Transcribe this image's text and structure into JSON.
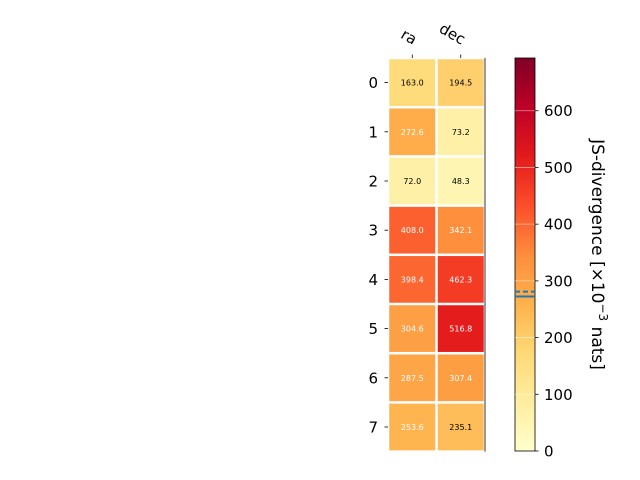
{
  "chart_data": {
    "type": "heatmap",
    "columns": [
      "ra",
      "dec"
    ],
    "rows": [
      "0",
      "1",
      "2",
      "3",
      "4",
      "5",
      "6",
      "7"
    ],
    "values": [
      [
        163.0,
        194.5
      ],
      [
        272.6,
        73.2
      ],
      [
        72.0,
        48.3
      ],
      [
        408.0,
        342.1
      ],
      [
        398.4,
        462.3
      ],
      [
        304.6,
        516.8
      ],
      [
        287.5,
        307.4
      ],
      [
        253.6,
        235.1
      ]
    ],
    "value_labels": [
      [
        "163.0",
        "194.5"
      ],
      [
        "272.6",
        "73.2"
      ],
      [
        "72.0",
        "48.3"
      ],
      [
        "408.0",
        "342.1"
      ],
      [
        "398.4",
        "462.3"
      ],
      [
        "304.6",
        "516.8"
      ],
      [
        "287.5",
        "307.4"
      ],
      [
        "253.6",
        "235.1"
      ]
    ],
    "colormap": "YlOrRd",
    "colorbar": {
      "label_main": "JS-divergence [×10",
      "label_exp": "−3",
      "label_tail": " nats]",
      "range": [
        0,
        693
      ],
      "ticks": [
        0,
        100,
        200,
        300,
        400,
        500,
        600
      ],
      "tick_labels": [
        "0",
        "100",
        "200",
        "300",
        "400",
        "500",
        "600"
      ],
      "solid_line_value": 272.5,
      "dashed_line_value": 281.0,
      "line_color": "#1f77b4"
    },
    "grid": false
  }
}
